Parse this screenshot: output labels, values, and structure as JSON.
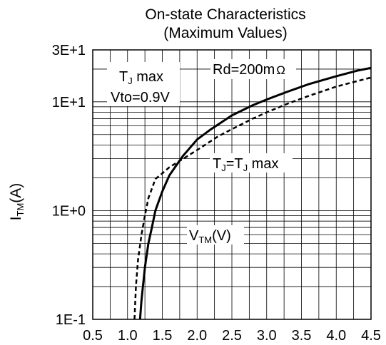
{
  "chart_data": {
    "type": "line",
    "title": "On-state Characteristics",
    "subtitle": "(Maximum Values)",
    "ylabel": {
      "main": "I",
      "sub": "TM",
      "unit": "(A)"
    },
    "xlabel_annotation": {
      "main": "V",
      "sub": "TM",
      "unit": "(V)"
    },
    "x_scale": "linear",
    "y_scale": "log",
    "xlim": [
      0.5,
      4.5
    ],
    "ylim": [
      0.1,
      30
    ],
    "x_ticks": [
      "0.5",
      "1.0",
      "1.5",
      "2.0",
      "2.5",
      "3.0",
      "3.5",
      "4.0",
      "4.5"
    ],
    "y_ticks": [
      {
        "value": 30,
        "label": "3E+1"
      },
      {
        "value": 10,
        "label": "1E+1"
      },
      {
        "value": 1,
        "label": "1E+0"
      },
      {
        "value": 0.1,
        "label": "1E-1"
      }
    ],
    "grid": true,
    "annotations": {
      "tj_max": {
        "main": "T",
        "sub": "J",
        "rest": " max"
      },
      "vto": "Vto=0.9V",
      "rd": "Rd=200m",
      "rd_unit": "Ω",
      "tj_eq": {
        "a": "T",
        "a_sub": "J",
        "mid": "=T",
        "b_sub": "J",
        "rest": " max"
      }
    },
    "series": [
      {
        "style": "solid",
        "x": [
          1.18,
          1.2,
          1.25,
          1.3,
          1.35,
          1.4,
          1.5,
          1.6,
          1.7,
          1.8,
          2.0,
          2.2,
          2.5,
          2.8,
          3.0,
          3.3,
          3.6,
          4.0,
          4.3,
          4.5
        ],
        "y": [
          0.1,
          0.15,
          0.3,
          0.5,
          0.7,
          1.0,
          1.5,
          2.1,
          2.6,
          3.2,
          4.5,
          5.6,
          7.5,
          9.3,
          10.5,
          12.4,
          14.5,
          17.2,
          19.3,
          20.5
        ]
      },
      {
        "style": "dashed",
        "x": [
          1.1,
          1.12,
          1.15,
          1.2,
          1.25,
          1.3,
          1.4,
          1.5,
          1.6,
          1.8,
          2.0,
          2.3,
          2.5,
          2.8,
          3.0,
          3.3,
          3.6,
          4.0,
          4.3,
          4.5
        ],
        "y": [
          0.1,
          0.2,
          0.35,
          0.6,
          0.9,
          1.3,
          1.95,
          2.2,
          2.5,
          3.0,
          3.6,
          4.8,
          5.6,
          7.0,
          8.0,
          9.6,
          11.3,
          13.8,
          15.5,
          16.7
        ]
      }
    ]
  }
}
